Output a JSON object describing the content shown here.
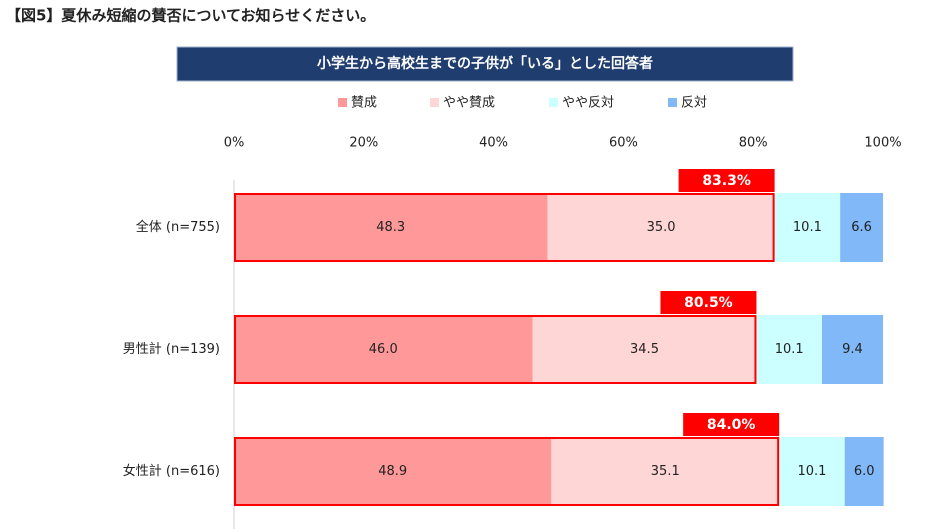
{
  "chart_data": {
    "type": "stacked-bar-horizontal",
    "title": "【図5】夏休み短縮の賛否についてお知らせください。",
    "subtitle": "小学生から高校生までの子供が「いる」とした回答者",
    "categories": [
      "全体 (n=755)",
      "男性計 (n=139)",
      "女性計 (n=616)"
    ],
    "series": [
      {
        "name": "賛成",
        "color": "#ff9999",
        "values": [
          48.3,
          46.0,
          48.9
        ],
        "value_labels": [
          "48.3",
          "46.0",
          "48.9"
        ]
      },
      {
        "name": "やや賛成",
        "color": "#ffd6d6",
        "values": [
          35.0,
          34.5,
          35.1
        ],
        "value_labels": [
          "35.0",
          "34.5",
          "35.1"
        ]
      },
      {
        "name": "やや反対",
        "color": "#ccffff",
        "values": [
          10.1,
          10.1,
          10.1
        ],
        "value_labels": [
          "10.1",
          "10.1",
          "10.1"
        ]
      },
      {
        "name": "反対",
        "color": "#80b8f8",
        "values": [
          6.6,
          9.4,
          6.0
        ],
        "value_labels": [
          "6.6",
          "9.4",
          "6.0"
        ]
      }
    ],
    "totals": {
      "values": [
        83.3,
        80.5,
        84.0
      ],
      "value_labels": [
        "83.3%",
        "80.5%",
        "84.0%"
      ],
      "color": "#ff0000"
    },
    "xlim": [
      0,
      100
    ],
    "xticks": [
      {
        "value": 0,
        "label": "0%"
      },
      {
        "value": 20,
        "label": "20%"
      },
      {
        "value": 40,
        "label": "40%"
      },
      {
        "value": 60,
        "label": "60%"
      },
      {
        "value": 80,
        "label": "80%"
      },
      {
        "value": 100,
        "label": "100%"
      }
    ],
    "legend": "top"
  }
}
